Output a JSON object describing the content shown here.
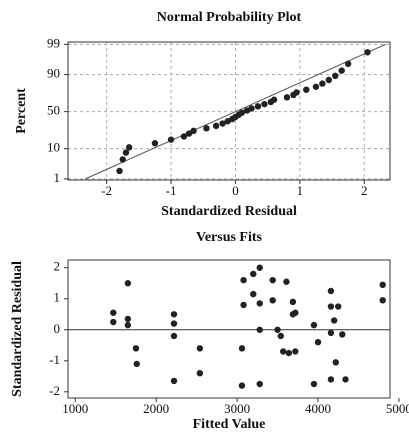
{
  "chart_data": [
    {
      "type": "probability",
      "title": "Normal Probability Plot",
      "x_label": "Standardized Residual",
      "y_label": "Percent",
      "x": [
        -1.8,
        -1.75,
        -1.7,
        -1.65,
        -1.25,
        -1.0,
        -0.8,
        -0.72,
        -0.65,
        -0.45,
        -0.3,
        -0.2,
        -0.12,
        -0.05,
        0.0,
        0.05,
        0.1,
        0.18,
        0.25,
        0.35,
        0.45,
        0.55,
        0.6,
        0.8,
        0.9,
        0.95,
        1.1,
        1.25,
        1.35,
        1.45,
        1.55,
        1.65,
        1.75,
        2.05
      ],
      "values": [
        2.0,
        4.9,
        7.8,
        10.8,
        13.7,
        16.6,
        19.5,
        22.4,
        25.3,
        28.2,
        31.1,
        34.0,
        36.9,
        39.8,
        42.7,
        45.6,
        48.5,
        51.5,
        54.4,
        57.3,
        60.2,
        63.1,
        66.0,
        68.9,
        71.8,
        74.7,
        77.6,
        80.5,
        83.4,
        86.3,
        89.2,
        92.2,
        95.1,
        98.0
      ],
      "fit_line": {
        "x": [
          -2.33,
          2.33
        ],
        "y": [
          1,
          99
        ]
      },
      "color": "#222222",
      "line_color": "#555555",
      "xlim": [
        -2.6,
        2.4
      ],
      "xticks": [
        -2,
        -1,
        0,
        1,
        2
      ],
      "ylim": [
        0.9,
        99.2
      ],
      "yticks": [
        1,
        10,
        50,
        90,
        99
      ],
      "y_scale": "probability",
      "grid": true
    },
    {
      "type": "scatter",
      "title": "Versus Fits",
      "x_label": "Fitted Value",
      "y_label": "Standardized Residual",
      "x": [
        1470,
        1470,
        1650,
        1650,
        1650,
        1750,
        1760,
        2220,
        2220,
        2220,
        2220,
        2540,
        2540,
        3060,
        3060,
        3080,
        3080,
        3200,
        3200,
        3280,
        3280,
        3280,
        3280,
        3440,
        3440,
        3500,
        3540,
        3570,
        3610,
        3640,
        3690,
        3690,
        3720,
        3720,
        3950,
        3950,
        4000,
        4160,
        4160,
        4160,
        4160,
        4200,
        4220,
        4250,
        4300,
        4340,
        4800,
        4800
      ],
      "values": [
        0.55,
        0.25,
        1.5,
        0.35,
        0.15,
        -0.6,
        -1.1,
        0.5,
        0.2,
        -0.2,
        -1.65,
        -0.6,
        -1.4,
        -0.6,
        -1.8,
        1.6,
        0.8,
        1.8,
        1.15,
        2.0,
        0.85,
        0.0,
        -1.75,
        1.6,
        0.95,
        0.0,
        -0.2,
        -0.7,
        1.55,
        -0.75,
        0.9,
        0.5,
        -0.7,
        0.55,
        0.15,
        -1.75,
        -0.4,
        1.25,
        0.75,
        -0.1,
        -1.6,
        0.3,
        -1.05,
        0.75,
        -0.15,
        -1.6,
        1.45,
        0.95
      ],
      "hline": 0,
      "color": "#222222",
      "line_color": "#333333",
      "xlim": [
        910,
        4890
      ],
      "xticks": [
        1000,
        2000,
        3000,
        4000,
        5000
      ],
      "ylim": [
        -2.2,
        2.25
      ],
      "yticks": [
        -2,
        -1,
        0,
        1,
        2
      ],
      "grid": false
    }
  ]
}
